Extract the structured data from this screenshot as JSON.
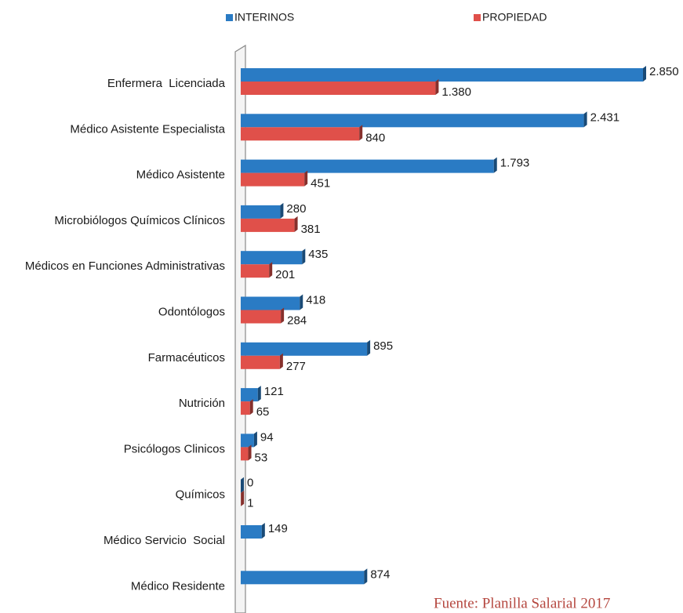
{
  "chart_data": {
    "type": "bar",
    "orientation": "horizontal",
    "categories": [
      "Enfermera  Licenciada",
      "Médico Asistente Especialista",
      "Médico Asistente",
      "Microbiólogos Químicos Clínicos",
      "Médicos en Funciones Administrativas",
      "Odontólogos",
      "Farmacéuticos",
      "Nutrición",
      "Psicólogos Clinicos",
      "Químicos",
      "Médico Servicio  Social",
      "Médico Residente"
    ],
    "series": [
      {
        "name": "INTERINOS",
        "color": "#2a7bc4",
        "values": [
          2850,
          2431,
          1793,
          280,
          435,
          418,
          895,
          121,
          94,
          0,
          149,
          874
        ],
        "value_labels": [
          "2.850",
          "2.431",
          "1.793",
          "280",
          "435",
          "418",
          "895",
          "121",
          "94",
          "0",
          "149",
          "874"
        ]
      },
      {
        "name": "PROPIEDAD",
        "color": "#e0504a",
        "values": [
          1380,
          840,
          451,
          381,
          201,
          284,
          277,
          65,
          53,
          1,
          null,
          null
        ],
        "value_labels": [
          "1.380",
          "840",
          "451",
          "381",
          "201",
          "284",
          "277",
          "65",
          "53",
          "1",
          null,
          null
        ]
      }
    ],
    "legend": "top",
    "annotation": "Fuente: Planilla Salarial 2017"
  }
}
